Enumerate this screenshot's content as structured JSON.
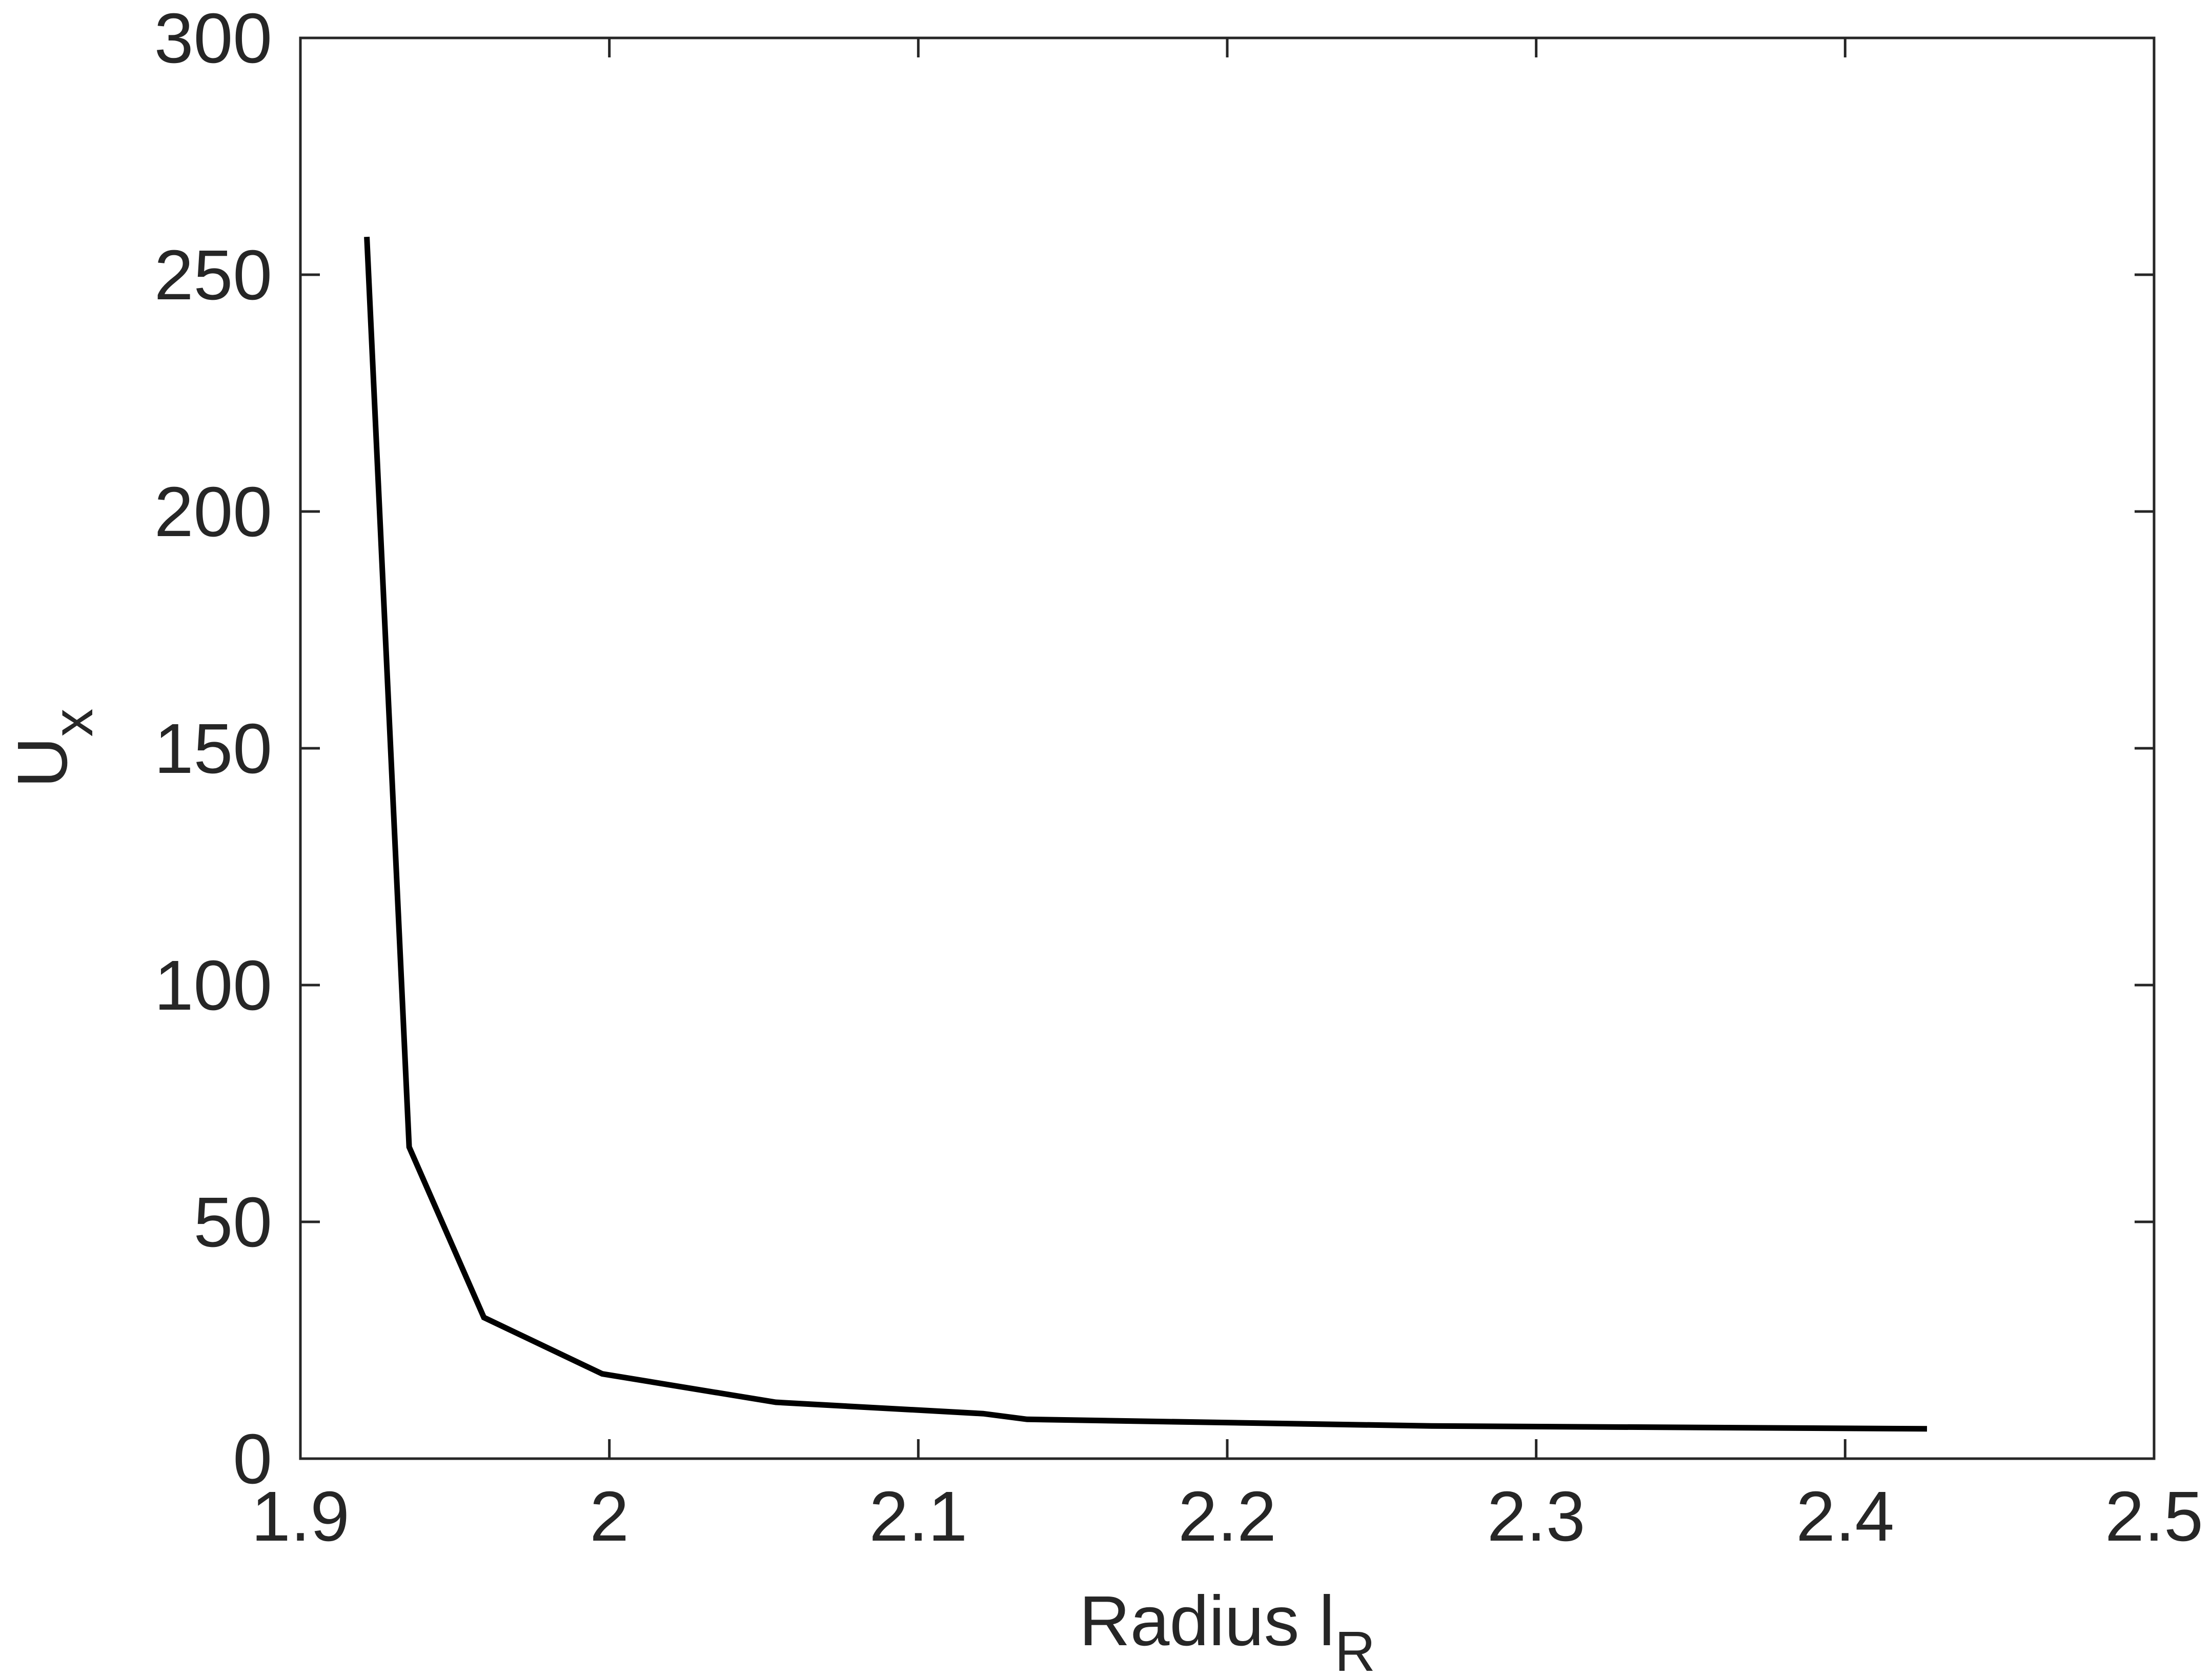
{
  "chart_data": {
    "type": "line",
    "xlabel": {
      "text": "Radius l",
      "subscript": "R"
    },
    "ylabel": {
      "text": "U",
      "subscript": "x"
    },
    "x": [
      1.9215,
      1.9352,
      1.9594,
      1.9977,
      2.0539,
      2.121,
      2.1352,
      2.2662,
      2.4265
    ],
    "series": [
      {
        "color": "#000000",
        "values": [
          258.0,
          65.8,
          29.8,
          17.9,
          11.9,
          9.5,
          8.3,
          6.9,
          6.3
        ]
      }
    ],
    "xlim": [
      1.9,
      2.5
    ],
    "xticks": [
      1.9,
      2,
      2.1,
      2.2,
      2.3,
      2.4,
      2.5
    ],
    "ylim": [
      0,
      300
    ],
    "yticks": [
      0,
      50,
      100,
      150,
      200,
      250,
      300
    ],
    "grid": false
  }
}
